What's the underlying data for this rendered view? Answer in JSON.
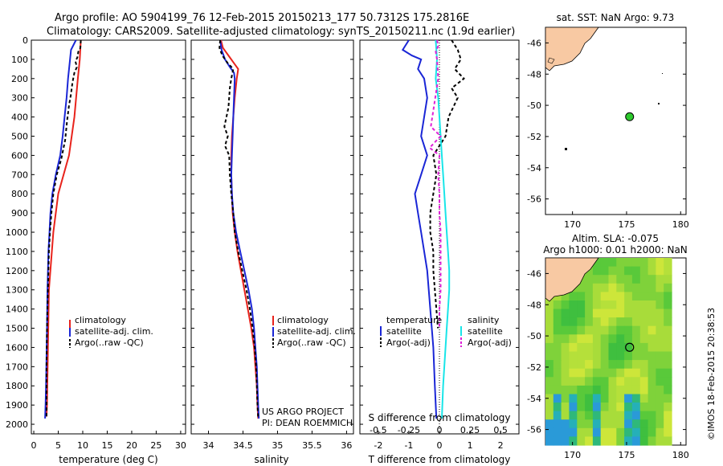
{
  "header": {
    "line1": "Argo profile: AO 5904199_76 12-Feb-2015 20150213_177 50.7312S 175.2816E",
    "line2": "Climatology: CARS2009. Satellite-adjusted climatology: synTS_20150211.nc (1.9d earlier)"
  },
  "colors": {
    "climatology": "#e8231c",
    "satellite": "#1a26d6",
    "argo": "#000000",
    "sal_satellite": "#19e5e8",
    "sal_argo": "#e020d8",
    "land": "#f8c9a3",
    "float_marker": "#2dc92d"
  },
  "legend_panel": {
    "items": [
      "climatology",
      "satellite-adj. clim.",
      "Argo(..raw -QC)"
    ]
  },
  "legend_diff": {
    "temp_title": "temperature",
    "temp_items": [
      "satellite",
      "Argo(-adj)"
    ],
    "sal_title": "salinity",
    "sal_items": [
      "satellite",
      "Argo(-adj)"
    ]
  },
  "project": {
    "line1": "US ARGO PROJECT",
    "line2": "PI: DEAN ROEMMICH"
  },
  "map_top": {
    "title": "sat. SST: NaN Argo: 9.73",
    "float_lon": 175.28,
    "float_lat": -50.73
  },
  "map_bottom": {
    "title1": "Altim. SLA: -0.075",
    "title2": "Argo h1000: 0.01 h2000: NaN"
  },
  "footer": {
    "timestamp": "©IMOS 18-Feb-2015 20:38:53"
  },
  "chart_data": [
    {
      "type": "line",
      "xlabel": "temperature (deg C)",
      "xlim": [
        -0.5,
        31
      ],
      "ylim": [
        0,
        2050
      ],
      "xticks": [
        0,
        5,
        10,
        15,
        20,
        25,
        30
      ],
      "yticks": [
        0,
        100,
        200,
        300,
        400,
        500,
        600,
        700,
        800,
        900,
        1000,
        1100,
        1200,
        1300,
        1400,
        1500,
        1600,
        1700,
        1800,
        1900,
        2000
      ],
      "y_reversed": true,
      "series": [
        {
          "name": "climatology",
          "color": "#e8231c",
          "points": [
            [
              9.6,
              0
            ],
            [
              9.4,
              100
            ],
            [
              9.0,
              200
            ],
            [
              8.3,
              400
            ],
            [
              7.2,
              600
            ],
            [
              5.0,
              800
            ],
            [
              4.0,
              1000
            ],
            [
              3.1,
              1300
            ],
            [
              2.9,
              1600
            ],
            [
              2.7,
              1900
            ],
            [
              2.6,
              1960
            ]
          ]
        },
        {
          "name": "satellite-adj. clim.",
          "color": "#1a26d6",
          "points": [
            [
              8.6,
              0
            ],
            [
              7.6,
              50
            ],
            [
              7.4,
              100
            ],
            [
              7.0,
              200
            ],
            [
              6.7,
              300
            ],
            [
              6.3,
              400
            ],
            [
              5.9,
              500
            ],
            [
              5.4,
              600
            ],
            [
              4.5,
              700
            ],
            [
              3.8,
              800
            ],
            [
              3.4,
              900
            ],
            [
              3.2,
              1000
            ],
            [
              3.0,
              1100
            ],
            [
              2.9,
              1200
            ],
            [
              2.8,
              1300
            ],
            [
              2.7,
              1500
            ],
            [
              2.5,
              1800
            ],
            [
              2.4,
              1900
            ],
            [
              2.3,
              1970
            ]
          ]
        },
        {
          "name": "Argo(..raw -QC)",
          "color": "#000000",
          "dashed": true,
          "points": [
            [
              9.6,
              0
            ],
            [
              9.5,
              40
            ],
            [
              9.1,
              60
            ],
            [
              8.9,
              90
            ],
            [
              8.5,
              110
            ],
            [
              8.8,
              140
            ],
            [
              8.3,
              170
            ],
            [
              7.9,
              220
            ],
            [
              7.6,
              280
            ],
            [
              7.2,
              340
            ],
            [
              6.8,
              420
            ],
            [
              6.4,
              520
            ],
            [
              5.6,
              620
            ],
            [
              4.7,
              700
            ],
            [
              4.0,
              800
            ],
            [
              3.6,
              900
            ],
            [
              3.3,
              1000
            ],
            [
              3.1,
              1100
            ],
            [
              3.0,
              1200
            ],
            [
              2.9,
              1300
            ],
            [
              2.8,
              1400
            ],
            [
              2.7,
              1500
            ],
            [
              2.6,
              1700
            ],
            [
              2.6,
              1900
            ],
            [
              2.6,
              1970
            ]
          ]
        }
      ]
    },
    {
      "type": "line",
      "xlabel": "salinity",
      "xlim": [
        33.75,
        36.1
      ],
      "ylim": [
        0,
        2050
      ],
      "xticks": [
        34,
        34.5,
        35,
        35.5,
        36
      ],
      "y_reversed": true,
      "series": [
        {
          "name": "climatology",
          "color": "#e8231c",
          "points": [
            [
              34.18,
              0
            ],
            [
              34.21,
              40
            ],
            [
              34.29,
              80
            ],
            [
              34.37,
              120
            ],
            [
              34.43,
              150
            ],
            [
              34.41,
              200
            ],
            [
              34.38,
              300
            ],
            [
              34.36,
              400
            ],
            [
              34.34,
              500
            ],
            [
              34.33,
              600
            ],
            [
              34.33,
              700
            ],
            [
              34.34,
              800
            ],
            [
              34.35,
              900
            ],
            [
              34.38,
              1000
            ],
            [
              34.42,
              1100
            ],
            [
              34.47,
              1200
            ],
            [
              34.52,
              1300
            ],
            [
              34.57,
              1400
            ],
            [
              34.62,
              1500
            ],
            [
              34.66,
              1600
            ],
            [
              34.68,
              1700
            ],
            [
              34.7,
              1800
            ],
            [
              34.71,
              1900
            ],
            [
              34.72,
              1970
            ]
          ]
        },
        {
          "name": "satellite-adj. clim.",
          "color": "#1a26d6",
          "points": [
            [
              34.17,
              0
            ],
            [
              34.19,
              50
            ],
            [
              34.24,
              100
            ],
            [
              34.31,
              140
            ],
            [
              34.37,
              170
            ],
            [
              34.38,
              200
            ],
            [
              34.37,
              300
            ],
            [
              34.36,
              400
            ],
            [
              34.35,
              500
            ],
            [
              34.34,
              600
            ],
            [
              34.33,
              700
            ],
            [
              34.34,
              800
            ],
            [
              34.36,
              900
            ],
            [
              34.4,
              1000
            ],
            [
              34.46,
              1100
            ],
            [
              34.52,
              1200
            ],
            [
              34.58,
              1300
            ],
            [
              34.63,
              1400
            ],
            [
              34.66,
              1500
            ],
            [
              34.68,
              1600
            ],
            [
              34.7,
              1700
            ],
            [
              34.71,
              1800
            ],
            [
              34.72,
              1900
            ],
            [
              34.73,
              1970
            ]
          ]
        },
        {
          "name": "Argo(..raw -QC)",
          "color": "#000000",
          "dashed": true,
          "points": [
            [
              34.17,
              0
            ],
            [
              34.16,
              40
            ],
            [
              34.2,
              80
            ],
            [
              34.28,
              120
            ],
            [
              34.36,
              150
            ],
            [
              34.33,
              200
            ],
            [
              34.31,
              250
            ],
            [
              34.29,
              350
            ],
            [
              34.23,
              450
            ],
            [
              34.28,
              500
            ],
            [
              34.24,
              550
            ],
            [
              34.3,
              600
            ],
            [
              34.31,
              700
            ],
            [
              34.33,
              800
            ],
            [
              34.36,
              900
            ],
            [
              34.38,
              1000
            ],
            [
              34.43,
              1100
            ],
            [
              34.49,
              1200
            ],
            [
              34.55,
              1300
            ],
            [
              34.6,
              1400
            ],
            [
              34.64,
              1500
            ],
            [
              34.67,
              1600
            ],
            [
              34.69,
              1700
            ],
            [
              34.7,
              1800
            ],
            [
              34.71,
              1900
            ],
            [
              34.72,
              1970
            ]
          ]
        }
      ]
    },
    {
      "type": "line",
      "xlabel": "T difference from climatology",
      "xlabel_top": "S difference from climatology",
      "xlim_T": [
        -2.6,
        2.6
      ],
      "xticks_T": [
        -2,
        -1,
        0,
        1,
        2
      ],
      "xlim_S": [
        -0.65,
        0.65
      ],
      "xticks_S": [
        -0.5,
        -0.25,
        0,
        0.25,
        0.5
      ],
      "xticklabels_S": [
        "-0.5",
        "-0.25",
        "0",
        "0.25",
        "0.5"
      ],
      "ylim": [
        0,
        2050
      ],
      "y_reversed": true,
      "series": [
        {
          "name": "temperature satellite",
          "axis": "T",
          "color": "#1a26d6",
          "points": [
            [
              -1.0,
              0
            ],
            [
              -1.2,
              50
            ],
            [
              -0.9,
              80
            ],
            [
              -0.6,
              100
            ],
            [
              -0.7,
              150
            ],
            [
              -0.5,
              200
            ],
            [
              -0.4,
              300
            ],
            [
              -0.5,
              400
            ],
            [
              -0.6,
              500
            ],
            [
              -0.4,
              600
            ],
            [
              -0.6,
              700
            ],
            [
              -0.8,
              800
            ],
            [
              -0.7,
              900
            ],
            [
              -0.6,
              1000
            ],
            [
              -0.5,
              1100
            ],
            [
              -0.4,
              1200
            ],
            [
              -0.3,
              1400
            ],
            [
              -0.2,
              1600
            ],
            [
              -0.15,
              1800
            ],
            [
              -0.1,
              1970
            ]
          ]
        },
        {
          "name": "temperature Argo(-adj)",
          "axis": "T",
          "color": "#000000",
          "dashed": true,
          "points": [
            [
              0.4,
              0
            ],
            [
              0.6,
              50
            ],
            [
              0.7,
              100
            ],
            [
              0.5,
              150
            ],
            [
              0.8,
              200
            ],
            [
              0.4,
              250
            ],
            [
              0.6,
              300
            ],
            [
              0.3,
              400
            ],
            [
              0.2,
              500
            ],
            [
              -0.2,
              600
            ],
            [
              -0.1,
              700
            ],
            [
              -0.2,
              800
            ],
            [
              -0.3,
              900
            ],
            [
              -0.3,
              1000
            ],
            [
              -0.2,
              1100
            ],
            [
              -0.2,
              1200
            ],
            [
              -0.15,
              1300
            ],
            [
              -0.1,
              1400
            ],
            [
              -0.05,
              1500
            ]
          ]
        },
        {
          "name": "salinity satellite",
          "axis": "S",
          "color": "#19e5e8",
          "points": [
            [
              -0.03,
              0
            ],
            [
              -0.02,
              100
            ],
            [
              -0.03,
              200
            ],
            [
              -0.01,
              300
            ],
            [
              0.0,
              400
            ],
            [
              0.01,
              500
            ],
            [
              0.02,
              600
            ],
            [
              0.03,
              700
            ],
            [
              0.04,
              800
            ],
            [
              0.05,
              900
            ],
            [
              0.06,
              1000
            ],
            [
              0.07,
              1100
            ],
            [
              0.08,
              1200
            ],
            [
              0.08,
              1300
            ],
            [
              0.07,
              1400
            ],
            [
              0.06,
              1500
            ],
            [
              0.05,
              1600
            ],
            [
              0.04,
              1700
            ],
            [
              0.03,
              1800
            ],
            [
              0.02,
              1970
            ]
          ]
        },
        {
          "name": "salinity Argo(-adj)",
          "axis": "S",
          "color": "#e020d8",
          "dashed": true,
          "points": [
            [
              -0.02,
              0
            ],
            [
              -0.01,
              30
            ],
            [
              -0.03,
              60
            ],
            [
              -0.02,
              100
            ],
            [
              -0.01,
              200
            ],
            [
              -0.07,
              450
            ],
            [
              0.01,
              500
            ],
            [
              -0.08,
              560
            ],
            [
              0.0,
              600
            ],
            [
              -0.01,
              700
            ],
            [
              0.0,
              800
            ],
            [
              0.0,
              900
            ],
            [
              0.01,
              1000
            ],
            [
              0.01,
              1100
            ],
            [
              0.01,
              1200
            ],
            [
              0.01,
              1300
            ],
            [
              0.0,
              1400
            ],
            [
              0.0,
              1500
            ]
          ]
        }
      ]
    },
    {
      "type": "scatter",
      "title": "sat. SST: NaN Argo: 9.73",
      "xlim": [
        167.5,
        180.5
      ],
      "ylim": [
        -57,
        -45
      ],
      "xticks": [
        170,
        175,
        180
      ],
      "yticks": [
        -46,
        -48,
        -50,
        -52,
        -54,
        -56
      ],
      "points": [
        {
          "x": 175.28,
          "y": -50.73
        }
      ]
    },
    {
      "type": "heatmap",
      "title": "Altim. SLA: -0.075",
      "subtitle": "Argo h1000: 0.01 h2000: NaN",
      "xlim": [
        167.5,
        180.5
      ],
      "ylim": [
        -57,
        -45
      ],
      "xticks": [
        170,
        175,
        180
      ],
      "yticks": [
        -46,
        -48,
        -50,
        -52,
        -54,
        -56
      ],
      "points": [
        {
          "x": 175.28,
          "y": -50.73
        }
      ]
    }
  ]
}
